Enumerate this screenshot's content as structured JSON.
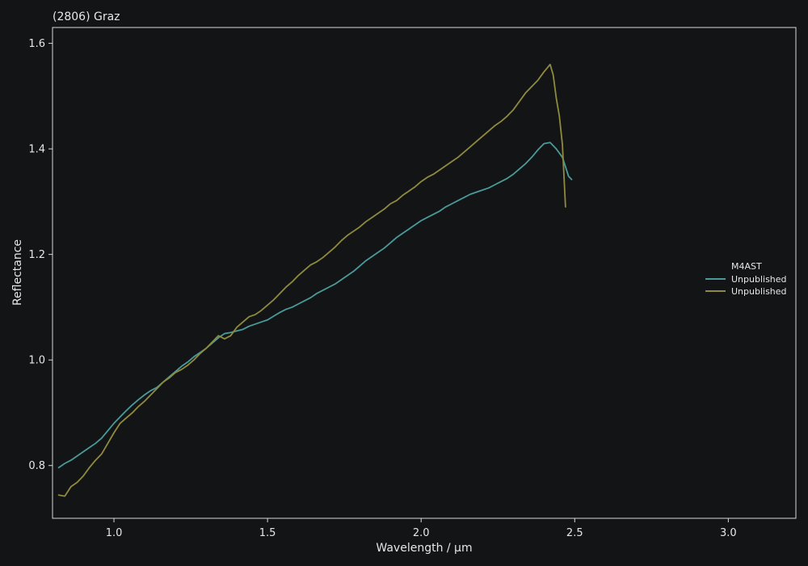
{
  "chart_data": {
    "type": "line",
    "title": "(2806) Graz",
    "xlabel": "Wavelength / µm",
    "ylabel": "Reflectance",
    "xlim": [
      0.8,
      3.22
    ],
    "ylim": [
      0.7,
      1.63
    ],
    "x_ticks": [
      "1.0",
      "1.5",
      "2.0",
      "2.5",
      "3.0"
    ],
    "y_ticks": [
      "0.8",
      "1.0",
      "1.2",
      "1.4",
      "1.6"
    ],
    "grid": false,
    "legend": {
      "title": "M4AST",
      "placement": "right",
      "entries": [
        "Unpublished",
        "Unpublished"
      ]
    },
    "series": [
      {
        "name": "Unpublished",
        "color": "#4a9a9a",
        "points": [
          [
            0.82,
            0.796
          ],
          [
            0.84,
            0.804
          ],
          [
            0.86,
            0.81
          ],
          [
            0.88,
            0.818
          ],
          [
            0.9,
            0.826
          ],
          [
            0.92,
            0.834
          ],
          [
            0.94,
            0.842
          ],
          [
            0.96,
            0.852
          ],
          [
            0.98,
            0.866
          ],
          [
            1.0,
            0.88
          ],
          [
            1.02,
            0.892
          ],
          [
            1.04,
            0.904
          ],
          [
            1.06,
            0.915
          ],
          [
            1.08,
            0.925
          ],
          [
            1.1,
            0.934
          ],
          [
            1.12,
            0.942
          ],
          [
            1.14,
            0.948
          ],
          [
            1.16,
            0.958
          ],
          [
            1.18,
            0.968
          ],
          [
            1.2,
            0.978
          ],
          [
            1.22,
            0.988
          ],
          [
            1.24,
            0.996
          ],
          [
            1.26,
            1.006
          ],
          [
            1.28,
            1.014
          ],
          [
            1.3,
            1.022
          ],
          [
            1.32,
            1.032
          ],
          [
            1.34,
            1.042
          ],
          [
            1.36,
            1.05
          ],
          [
            1.38,
            1.052
          ],
          [
            1.4,
            1.055
          ],
          [
            1.42,
            1.058
          ],
          [
            1.44,
            1.064
          ],
          [
            1.46,
            1.068
          ],
          [
            1.48,
            1.072
          ],
          [
            1.5,
            1.076
          ],
          [
            1.52,
            1.083
          ],
          [
            1.54,
            1.09
          ],
          [
            1.56,
            1.096
          ],
          [
            1.58,
            1.1
          ],
          [
            1.6,
            1.106
          ],
          [
            1.62,
            1.112
          ],
          [
            1.64,
            1.118
          ],
          [
            1.66,
            1.126
          ],
          [
            1.68,
            1.132
          ],
          [
            1.7,
            1.138
          ],
          [
            1.72,
            1.144
          ],
          [
            1.74,
            1.152
          ],
          [
            1.76,
            1.16
          ],
          [
            1.78,
            1.168
          ],
          [
            1.8,
            1.178
          ],
          [
            1.82,
            1.188
          ],
          [
            1.84,
            1.196
          ],
          [
            1.86,
            1.204
          ],
          [
            1.88,
            1.212
          ],
          [
            1.9,
            1.222
          ],
          [
            1.92,
            1.232
          ],
          [
            1.94,
            1.24
          ],
          [
            1.96,
            1.248
          ],
          [
            1.98,
            1.256
          ],
          [
            2.0,
            1.264
          ],
          [
            2.02,
            1.27
          ],
          [
            2.04,
            1.276
          ],
          [
            2.06,
            1.282
          ],
          [
            2.08,
            1.29
          ],
          [
            2.1,
            1.296
          ],
          [
            2.12,
            1.302
          ],
          [
            2.14,
            1.308
          ],
          [
            2.16,
            1.314
          ],
          [
            2.18,
            1.318
          ],
          [
            2.2,
            1.322
          ],
          [
            2.22,
            1.326
          ],
          [
            2.24,
            1.332
          ],
          [
            2.26,
            1.338
          ],
          [
            2.28,
            1.344
          ],
          [
            2.3,
            1.352
          ],
          [
            2.32,
            1.362
          ],
          [
            2.34,
            1.372
          ],
          [
            2.36,
            1.384
          ],
          [
            2.38,
            1.398
          ],
          [
            2.4,
            1.41
          ],
          [
            2.42,
            1.412
          ],
          [
            2.44,
            1.4
          ],
          [
            2.46,
            1.384
          ],
          [
            2.48,
            1.348
          ],
          [
            2.49,
            1.342
          ]
        ]
      },
      {
        "name": "Unpublished",
        "color": "#8f8a3e",
        "points": [
          [
            0.82,
            0.744
          ],
          [
            0.84,
            0.742
          ],
          [
            0.86,
            0.76
          ],
          [
            0.88,
            0.768
          ],
          [
            0.9,
            0.78
          ],
          [
            0.92,
            0.796
          ],
          [
            0.94,
            0.81
          ],
          [
            0.96,
            0.822
          ],
          [
            0.98,
            0.842
          ],
          [
            1.0,
            0.862
          ],
          [
            1.02,
            0.88
          ],
          [
            1.04,
            0.89
          ],
          [
            1.06,
            0.9
          ],
          [
            1.08,
            0.912
          ],
          [
            1.1,
            0.922
          ],
          [
            1.12,
            0.934
          ],
          [
            1.14,
            0.946
          ],
          [
            1.16,
            0.958
          ],
          [
            1.18,
            0.966
          ],
          [
            1.2,
            0.976
          ],
          [
            1.22,
            0.982
          ],
          [
            1.24,
            0.99
          ],
          [
            1.26,
            1.0
          ],
          [
            1.28,
            1.012
          ],
          [
            1.3,
            1.022
          ],
          [
            1.32,
            1.034
          ],
          [
            1.34,
            1.046
          ],
          [
            1.36,
            1.04
          ],
          [
            1.38,
            1.046
          ],
          [
            1.4,
            1.062
          ],
          [
            1.42,
            1.072
          ],
          [
            1.44,
            1.082
          ],
          [
            1.46,
            1.086
          ],
          [
            1.48,
            1.094
          ],
          [
            1.5,
            1.104
          ],
          [
            1.52,
            1.114
          ],
          [
            1.54,
            1.126
          ],
          [
            1.56,
            1.138
          ],
          [
            1.58,
            1.148
          ],
          [
            1.6,
            1.16
          ],
          [
            1.62,
            1.17
          ],
          [
            1.64,
            1.18
          ],
          [
            1.66,
            1.186
          ],
          [
            1.68,
            1.194
          ],
          [
            1.7,
            1.204
          ],
          [
            1.72,
            1.214
          ],
          [
            1.74,
            1.226
          ],
          [
            1.76,
            1.236
          ],
          [
            1.78,
            1.244
          ],
          [
            1.8,
            1.252
          ],
          [
            1.82,
            1.262
          ],
          [
            1.84,
            1.27
          ],
          [
            1.86,
            1.278
          ],
          [
            1.88,
            1.286
          ],
          [
            1.9,
            1.296
          ],
          [
            1.92,
            1.302
          ],
          [
            1.94,
            1.312
          ],
          [
            1.96,
            1.32
          ],
          [
            1.98,
            1.328
          ],
          [
            2.0,
            1.338
          ],
          [
            2.02,
            1.346
          ],
          [
            2.04,
            1.352
          ],
          [
            2.06,
            1.36
          ],
          [
            2.08,
            1.368
          ],
          [
            2.1,
            1.376
          ],
          [
            2.12,
            1.384
          ],
          [
            2.14,
            1.394
          ],
          [
            2.16,
            1.404
          ],
          [
            2.18,
            1.414
          ],
          [
            2.2,
            1.424
          ],
          [
            2.22,
            1.434
          ],
          [
            2.24,
            1.444
          ],
          [
            2.26,
            1.452
          ],
          [
            2.28,
            1.462
          ],
          [
            2.3,
            1.474
          ],
          [
            2.32,
            1.49
          ],
          [
            2.34,
            1.506
          ],
          [
            2.36,
            1.518
          ],
          [
            2.38,
            1.53
          ],
          [
            2.4,
            1.546
          ],
          [
            2.42,
            1.56
          ],
          [
            2.43,
            1.54
          ],
          [
            2.44,
            1.496
          ],
          [
            2.45,
            1.462
          ],
          [
            2.46,
            1.408
          ],
          [
            2.47,
            1.29
          ]
        ]
      }
    ]
  }
}
